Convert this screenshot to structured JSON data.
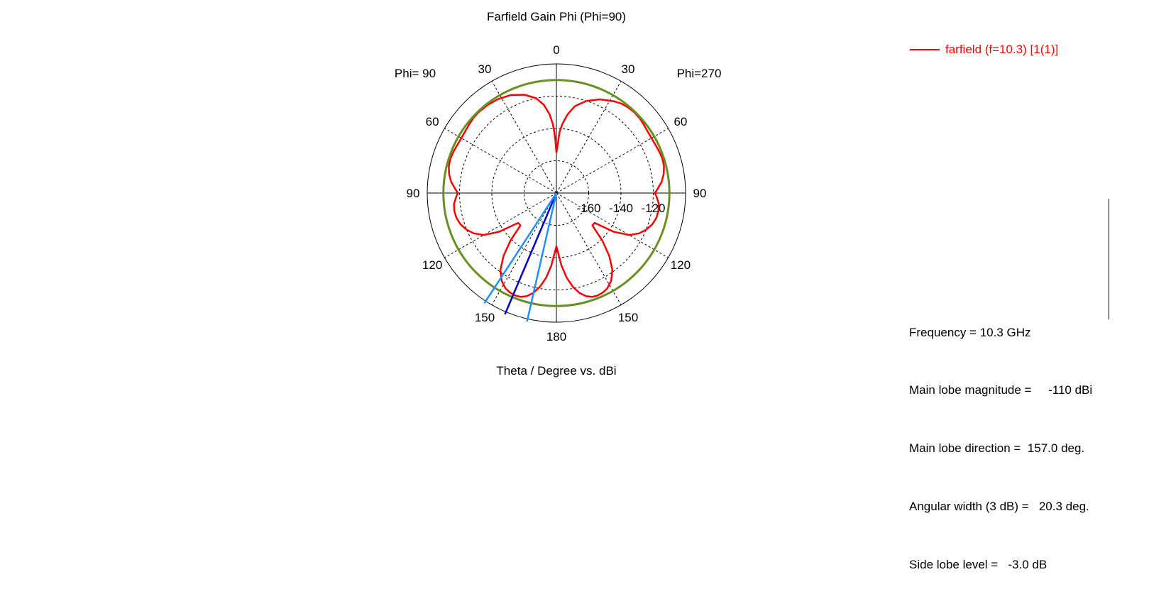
{
  "chart_data": {
    "type": "polar",
    "title": "Farfield Gain Phi (Phi=90)",
    "xlabel": "Theta / Degree vs. dBi",
    "left_half_label": "Phi= 90",
    "right_half_label": "Phi=270",
    "angle_tick_labels": {
      "0": "0",
      "30": "30",
      "60": "60",
      "90": "90",
      "120": "120",
      "150": "150",
      "180": "180",
      "-30": "30",
      "-60": "60",
      "-90": "90",
      "-120": "120",
      "-150": "150"
    },
    "radial_ticks": [
      -160,
      -140,
      -120
    ],
    "radial_range": [
      -180,
      -100
    ],
    "series": [
      {
        "name": "farfield (f=10.3) [1(1)]",
        "color": "#ff0000",
        "theta": [
          0,
          1,
          2,
          3,
          5,
          8,
          12,
          18,
          25,
          32,
          38,
          44,
          48,
          52,
          56,
          60,
          64,
          68,
          72,
          76,
          80,
          84,
          88,
          90,
          92,
          96,
          100,
          104,
          108,
          112,
          116,
          120,
          124,
          128,
          132,
          136,
          140,
          144,
          148,
          152,
          155,
          158,
          161,
          164,
          167,
          170,
          173,
          176,
          178,
          180,
          182,
          184,
          187,
          190,
          193,
          196,
          199,
          202,
          205,
          208,
          212,
          216,
          220,
          224,
          228,
          232,
          236,
          240,
          244,
          248,
          252,
          256,
          260,
          264,
          268,
          270,
          272,
          276,
          280,
          284,
          288,
          292,
          296,
          300,
          304,
          308,
          312,
          316,
          320,
          324,
          328,
          335,
          342,
          348,
          352,
          355,
          357,
          358,
          359,
          360
        ],
        "gain": [
          -155,
          -148,
          -142,
          -137,
          -131,
          -125,
          -120,
          -116,
          -113,
          -111.5,
          -110.8,
          -110.5,
          -110.7,
          -111.3,
          -111.8,
          -112,
          -111.8,
          -111.3,
          -111,
          -111.3,
          -112.5,
          -114.5,
          -117.5,
          -119,
          -118,
          -116.2,
          -115.8,
          -116.2,
          -117.5,
          -119.8,
          -123,
          -128,
          -137,
          -150,
          -150,
          -139,
          -129,
          -121,
          -116,
          -113,
          -112,
          -111.6,
          -112,
          -113.5,
          -116.5,
          -121,
          -127,
          -135,
          -142,
          -147,
          -142,
          -135,
          -127,
          -121,
          -116.5,
          -113.5,
          -112,
          -111.6,
          -112,
          -113,
          -116,
          -121,
          -129,
          -139,
          -150,
          -150,
          -137,
          -128,
          -123,
          -119.8,
          -117.5,
          -116.2,
          -115.8,
          -116.2,
          -118,
          -119,
          -117.5,
          -114.5,
          -112.5,
          -111.3,
          -111,
          -111.3,
          -111.8,
          -112,
          -111.8,
          -111.3,
          -110.7,
          -110.5,
          -110.8,
          -111.5,
          -113,
          -116,
          -120,
          -125,
          -131,
          -137,
          -142,
          -148,
          -152,
          -155
        ]
      },
      {
        "name": "reference",
        "color": "#6b8e23",
        "theta": [
          0,
          360
        ],
        "gain": [
          -110,
          -110
        ]
      }
    ],
    "markers": [
      {
        "type": "main-lobe-direction",
        "angle": 157.0,
        "color": "#0000cc"
      },
      {
        "type": "3dB-width-edge",
        "angle": 146.8,
        "color": "#1e90ff"
      },
      {
        "type": "3dB-width-edge",
        "angle": 167.1,
        "color": "#1e90ff"
      }
    ],
    "grid": true,
    "legend_position": "top-right"
  },
  "legend": {
    "label": "farfield (f=10.3) [1(1)]"
  },
  "stats": [
    {
      "label": "Frequency = ",
      "value": "10.3 GHz"
    },
    {
      "label": "Main lobe magnitude = ",
      "value": "    -110 dBi"
    },
    {
      "label": "Main lobe direction = ",
      "value": " 157.0 deg."
    },
    {
      "label": "Angular width (3 dB) = ",
      "value": "  20.3 deg."
    },
    {
      "label": "Side lobe level = ",
      "value": "  -3.0 dB"
    }
  ]
}
